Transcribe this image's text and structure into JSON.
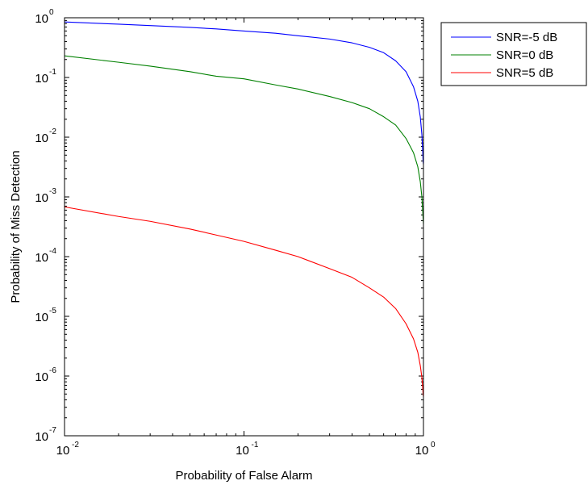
{
  "chart_data": {
    "type": "line",
    "title": "",
    "xlabel": "Probability of False Alarm",
    "ylabel": "Probability of Miss Detection",
    "xscale": "log",
    "yscale": "log",
    "xlim": [
      0.01,
      1
    ],
    "ylim": [
      1e-07,
      1
    ],
    "grid": false,
    "legend_position": "outside-top-right",
    "x_ticks": [
      {
        "value": 0.01,
        "base": "10",
        "exp": "-2"
      },
      {
        "value": 0.1,
        "base": "10",
        "exp": "-1"
      },
      {
        "value": 1,
        "base": "10",
        "exp": "0"
      }
    ],
    "y_ticks": [
      {
        "value": 1,
        "base": "10",
        "exp": "0"
      },
      {
        "value": 0.1,
        "base": "10",
        "exp": "-1"
      },
      {
        "value": 0.01,
        "base": "10",
        "exp": "-2"
      },
      {
        "value": 0.001,
        "base": "10",
        "exp": "-3"
      },
      {
        "value": 0.0001,
        "base": "10",
        "exp": "-4"
      },
      {
        "value": 1e-05,
        "base": "10",
        "exp": "-5"
      },
      {
        "value": 1e-06,
        "base": "10",
        "exp": "-6"
      },
      {
        "value": 1e-07,
        "base": "10",
        "exp": "-7"
      }
    ],
    "series": [
      {
        "name": "SNR=-5 dB",
        "color": "#0000ff",
        "x": [
          0.01,
          0.02,
          0.03,
          0.05,
          0.07,
          0.1,
          0.15,
          0.2,
          0.3,
          0.4,
          0.5,
          0.6,
          0.7,
          0.8,
          0.88,
          0.93,
          0.96,
          0.98,
          0.99,
          0.995,
          1.0
        ],
        "y": [
          0.85,
          0.78,
          0.74,
          0.69,
          0.65,
          0.6,
          0.55,
          0.5,
          0.44,
          0.38,
          0.32,
          0.26,
          0.19,
          0.125,
          0.07,
          0.04,
          0.022,
          0.011,
          0.006,
          0.004,
          0.0035
        ]
      },
      {
        "name": "SNR=0 dB",
        "color": "#008000",
        "x": [
          0.01,
          0.02,
          0.03,
          0.05,
          0.07,
          0.1,
          0.15,
          0.2,
          0.3,
          0.4,
          0.5,
          0.6,
          0.7,
          0.8,
          0.88,
          0.93,
          0.96,
          0.98,
          0.99,
          0.995,
          1.0
        ],
        "y": [
          0.23,
          0.18,
          0.155,
          0.125,
          0.105,
          0.095,
          0.075,
          0.064,
          0.048,
          0.038,
          0.03,
          0.022,
          0.016,
          0.0095,
          0.0055,
          0.0032,
          0.0018,
          0.001,
          0.0006,
          0.00045,
          0.00035
        ]
      },
      {
        "name": "SNR=5 dB",
        "color": "#ff0000",
        "x": [
          0.01,
          0.02,
          0.03,
          0.05,
          0.07,
          0.1,
          0.15,
          0.2,
          0.3,
          0.4,
          0.5,
          0.6,
          0.7,
          0.8,
          0.88,
          0.93,
          0.96,
          0.98,
          0.99,
          0.995,
          1.0
        ],
        "y": [
          0.00068,
          0.00047,
          0.00039,
          0.00029,
          0.00023,
          0.00018,
          0.000128,
          0.0001,
          6.3e-05,
          4.5e-05,
          3e-05,
          2.1e-05,
          1.35e-05,
          7.5e-06,
          4.2e-06,
          2.5e-06,
          1.5e-06,
          9.5e-07,
          6.5e-07,
          5e-07,
          4.5e-07
        ]
      }
    ]
  }
}
